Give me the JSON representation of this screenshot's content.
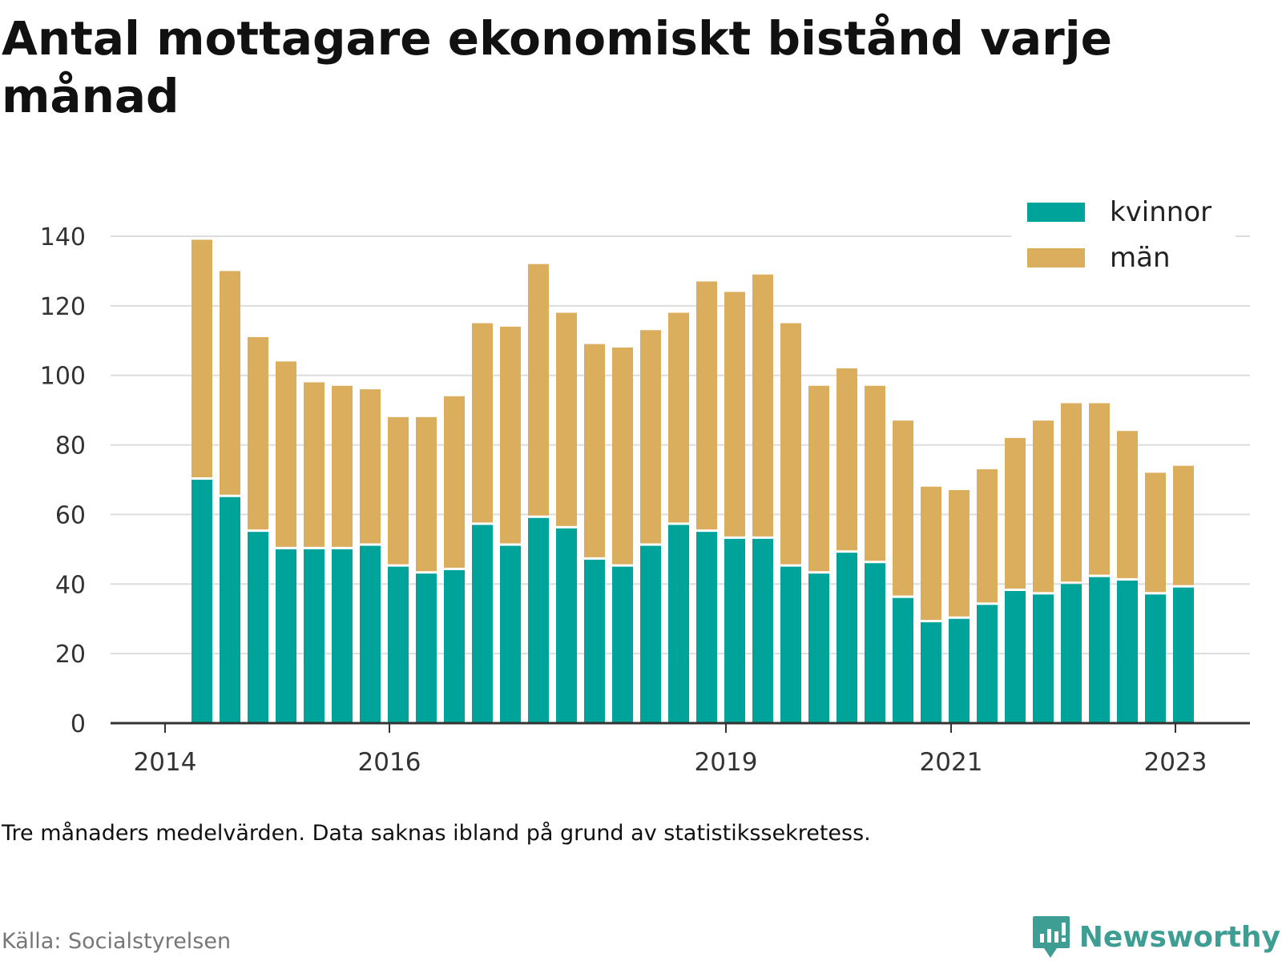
{
  "chart_data": {
    "type": "bar",
    "stacked": true,
    "title": "Antal mottagare ekonomiskt bistånd varje månad",
    "xlabel": "",
    "ylabel": "",
    "ylim": [
      0,
      140
    ],
    "yticks": [
      0,
      20,
      40,
      60,
      80,
      100,
      120,
      140
    ],
    "xtick_labels": [
      "2014",
      "2016",
      "2019",
      "2021",
      "2023"
    ],
    "legend_position": "top-right",
    "grid": true,
    "series": [
      {
        "name": "kvinnor",
        "color": "#00a39a",
        "values": [
          70,
          65,
          55,
          50,
          50,
          50,
          51,
          45,
          43,
          44,
          57,
          51,
          59,
          56,
          47,
          45,
          51,
          57,
          55,
          53,
          53,
          45,
          43,
          49,
          46,
          36,
          29,
          30,
          34,
          38,
          37,
          40,
          42,
          41,
          37,
          39
        ]
      },
      {
        "name": "män",
        "color": "#dbae5d",
        "values": [
          69,
          65,
          56,
          54,
          48,
          47,
          45,
          43,
          45,
          50,
          58,
          63,
          73,
          62,
          62,
          63,
          62,
          61,
          72,
          71,
          76,
          70,
          54,
          53,
          51,
          51,
          39,
          37,
          39,
          44,
          50,
          52,
          50,
          43,
          35,
          35
        ]
      }
    ]
  },
  "note": "Tre månaders medelvärden. Data saknas ibland på grund av statistikssekretess.",
  "source": "Källa: Socialstyrelsen",
  "brand": {
    "name": "Newsworthy",
    "color": "#3e9e94",
    "icon": "newsworthy-logo-icon"
  }
}
